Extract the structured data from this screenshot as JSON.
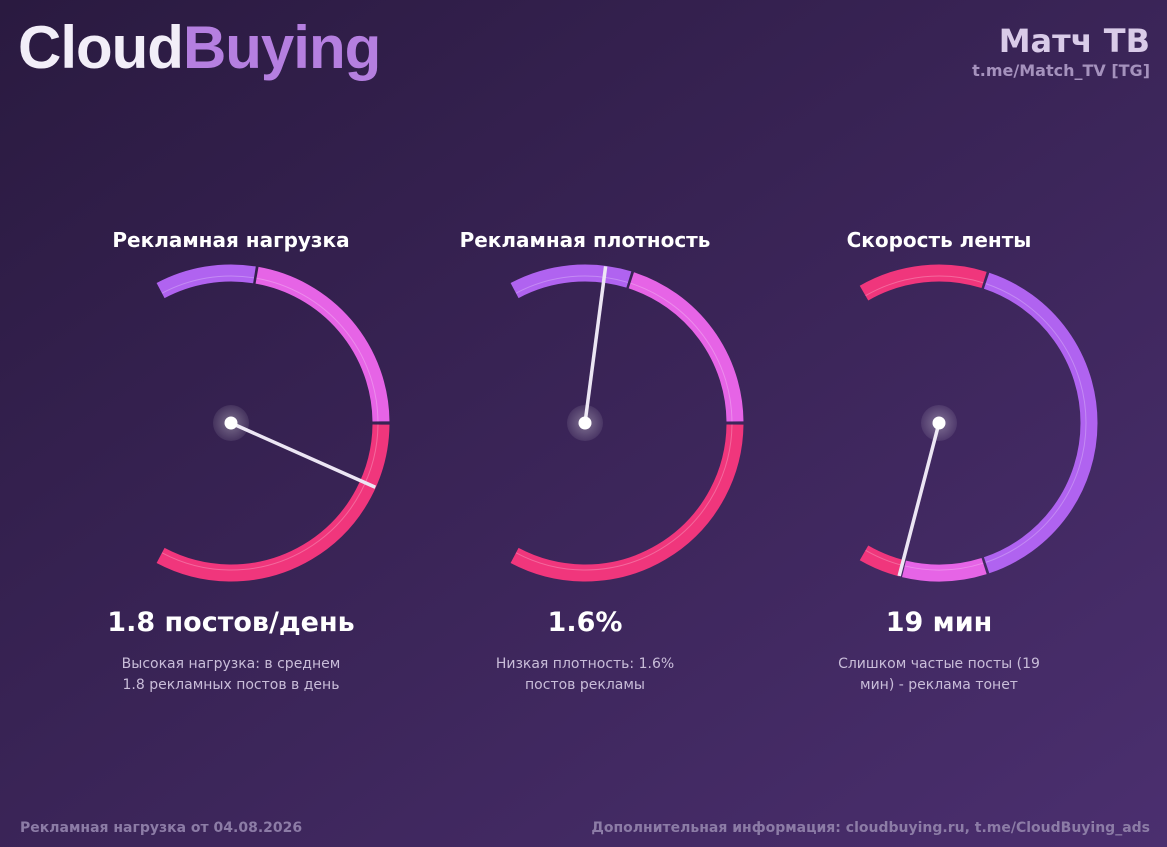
{
  "header": {
    "logo_part1": "Cloud",
    "logo_part2": "Buying",
    "channel": "Матч ТВ",
    "channel_link": "t.me/Match_TV [TG]"
  },
  "gauges": [
    {
      "title": "Рекламная нагрузка",
      "value": "1.8 постов/день",
      "description": [
        "Высокая нагрузка: в среднем",
        "1.8 рекламных постов в день"
      ]
    },
    {
      "title": "Рекламная плотность",
      "value": "1.6%",
      "description": [
        "Низкая плотность: 1.6%",
        "постов рекламы"
      ]
    },
    {
      "title": "Скорость ленты",
      "value": "19 мин",
      "description": [
        "Слишком частые посты (19",
        "мин) - реклама тонет"
      ]
    }
  ],
  "footer": {
    "left": "Рекламная нагрузка от 04.08.2026",
    "right": "Дополнительная информация: cloudbuying.ru, t.me/CloudBuying_ads"
  }
}
